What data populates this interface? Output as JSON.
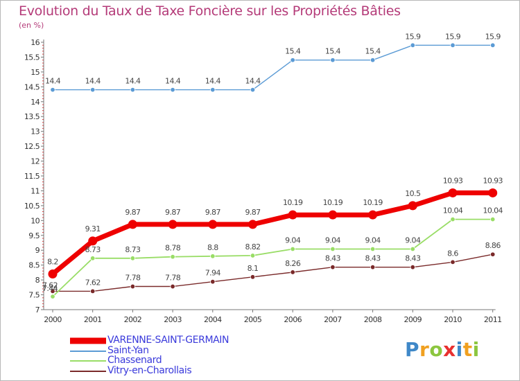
{
  "chart_data": {
    "type": "line",
    "title": "Evolution du Taux de Taxe Foncière sur les Propriétés Bâties",
    "ylabel": "(en %)",
    "xlabel": "",
    "x": [
      "2000",
      "2001",
      "2002",
      "2003",
      "2004",
      "2005",
      "2006",
      "2007",
      "2008",
      "2009",
      "2010",
      "2011"
    ],
    "ylim": [
      7,
      16
    ],
    "yticks": [
      "7",
      "7.5",
      "8",
      "8.5",
      "9",
      "9.5",
      "10",
      "10.5",
      "11",
      "11.5",
      "12",
      "12.5",
      "13",
      "13.5",
      "14",
      "14.5",
      "15",
      "15.5",
      "16"
    ],
    "grid": false,
    "legend_position": "bottom-left",
    "series": [
      {
        "name": "VARENNE-SAINT-GERMAIN",
        "color": "#ee0000",
        "values": [
          8.2,
          9.31,
          9.87,
          9.87,
          9.87,
          9.87,
          10.19,
          10.19,
          10.19,
          10.5,
          10.93,
          10.93
        ],
        "labels": [
          "8.2",
          "9.31",
          "9.87",
          "9.87",
          "9.87",
          "9.87",
          "10.19",
          "10.19",
          "10.19",
          "10.5",
          "10.93",
          "10.93"
        ]
      },
      {
        "name": "Saint-Yan",
        "color": "#5b9bd5",
        "values": [
          14.4,
          14.4,
          14.4,
          14.4,
          14.4,
          14.4,
          15.4,
          15.4,
          15.4,
          15.9,
          15.9,
          15.9
        ],
        "labels": [
          "14.4",
          "14.4",
          "14.4",
          "14.4",
          "14.4",
          "14.4",
          "15.4",
          "15.4",
          "15.4",
          "15.9",
          "15.9",
          "15.9"
        ]
      },
      {
        "name": "Chassenard",
        "color": "#99dd66",
        "values": [
          7.44,
          8.73,
          8.73,
          8.78,
          8.8,
          8.82,
          9.04,
          9.04,
          9.04,
          9.04,
          10.04,
          10.04
        ],
        "labels": [
          "7.44",
          "8.73",
          "8.73",
          "8.78",
          "8.8",
          "8.82",
          "9.04",
          "9.04",
          "9.04",
          "9.04",
          "10.04",
          "10.04"
        ]
      },
      {
        "name": "Vitry-en-Charollais",
        "color": "#7a2a2a",
        "values": [
          7.62,
          7.62,
          7.78,
          7.78,
          7.94,
          8.1,
          8.26,
          8.43,
          8.43,
          8.43,
          8.6,
          8.86
        ],
        "labels": [
          "7.62",
          "7.62",
          "7.78",
          "7.78",
          "7.94",
          "8.1",
          "8.26",
          "8.43",
          "8.43",
          "8.43",
          "8.6",
          "8.86"
        ]
      }
    ]
  },
  "logo": {
    "text": "Proxiti",
    "letters": [
      {
        "ch": "P",
        "color": "#3f88c8"
      },
      {
        "ch": "r",
        "color": "#f0a020"
      },
      {
        "ch": "o",
        "color": "#8cc63f"
      },
      {
        "ch": "x",
        "color": "#e8302f"
      },
      {
        "ch": "i",
        "color": "#3f88c8"
      },
      {
        "ch": "t",
        "color": "#f0a020"
      },
      {
        "ch": "i",
        "color": "#8cc63f"
      }
    ]
  }
}
